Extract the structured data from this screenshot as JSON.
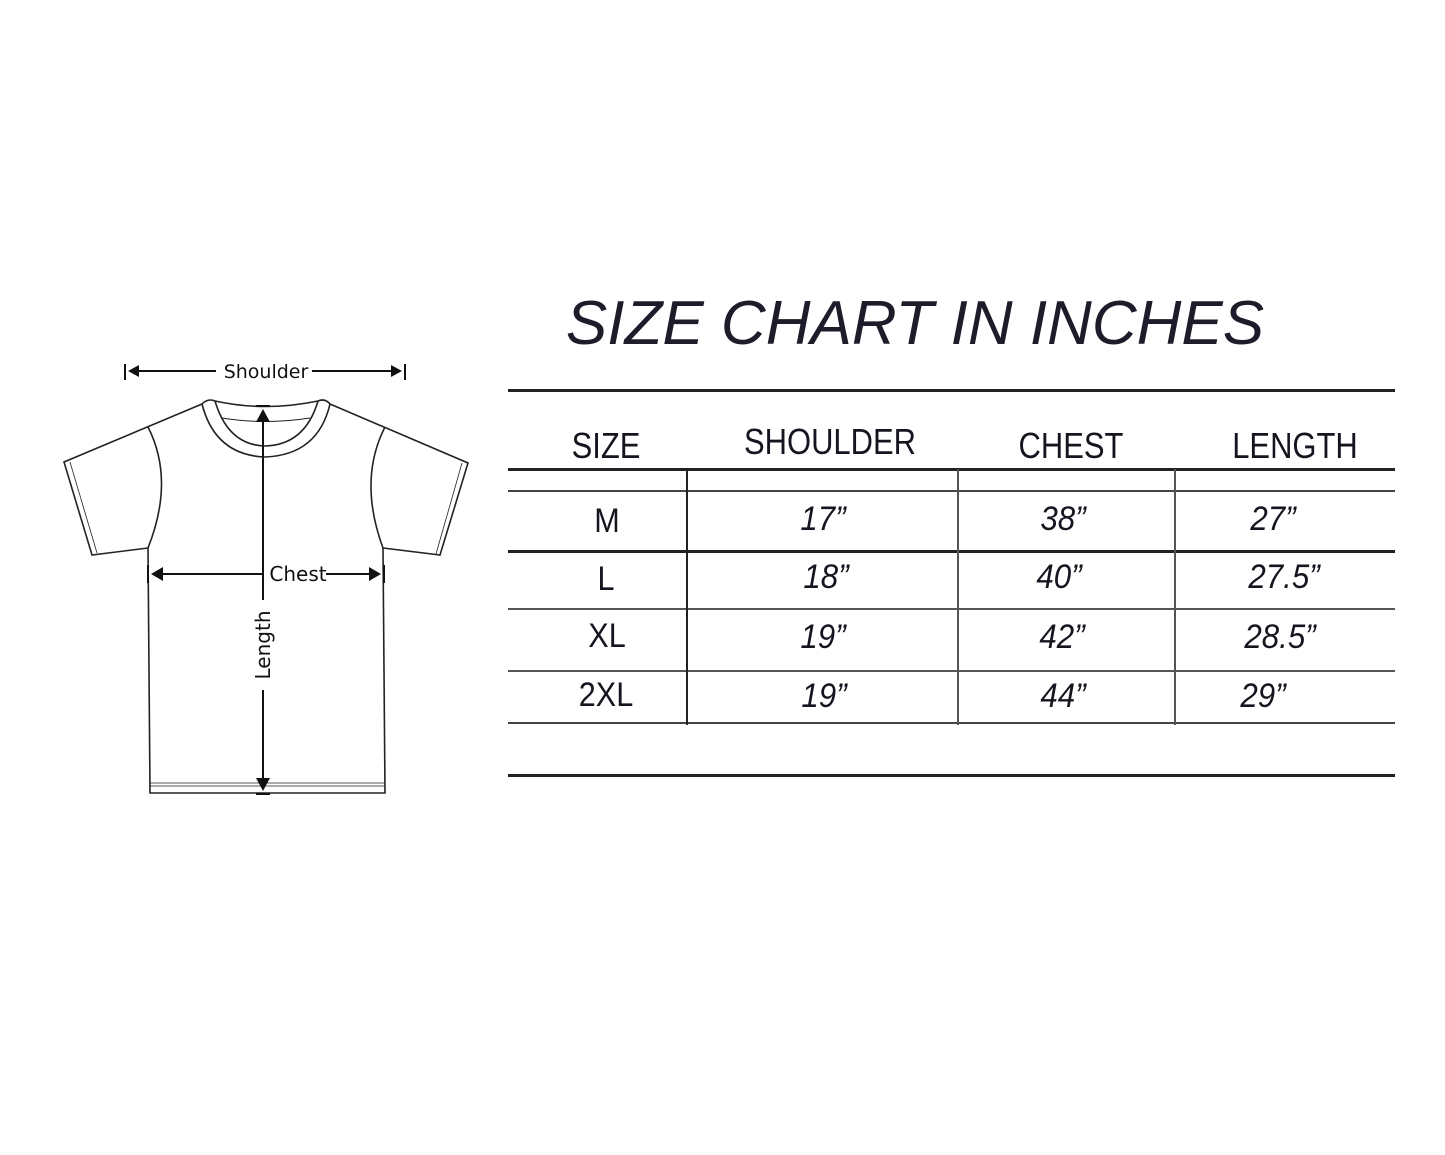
{
  "title": "SIZE CHART IN INCHES",
  "diagram": {
    "labels": {
      "shoulder": "Shoulder",
      "chest": "Chest",
      "length": "Length"
    }
  },
  "table": {
    "headers": [
      "SIZE",
      "SHOULDER",
      "CHEST",
      "LENGTH"
    ],
    "rows": [
      {
        "size": "M",
        "shoulder": "17”",
        "chest": "38”",
        "length": "27”"
      },
      {
        "size": "L",
        "shoulder": "18”",
        "chest": "40”",
        "length": "27.5”"
      },
      {
        "size": "XL",
        "shoulder": "19”",
        "chest": "42”",
        "length": "28.5”"
      },
      {
        "size": "2XL",
        "shoulder": "19”",
        "chest": "44”",
        "length": "29”"
      }
    ]
  }
}
